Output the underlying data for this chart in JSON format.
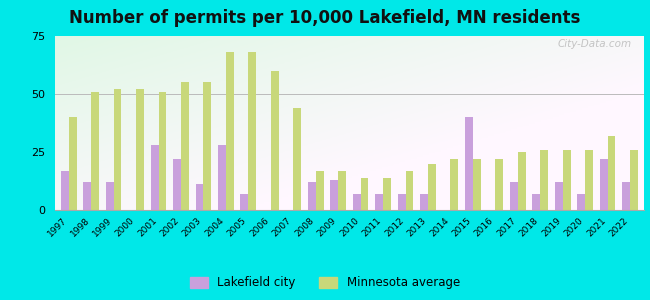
{
  "title": "Number of permits per 10,000 Lakefield, MN residents",
  "years": [
    1997,
    1998,
    1999,
    2000,
    2001,
    2002,
    2003,
    2004,
    2005,
    2006,
    2007,
    2008,
    2009,
    2010,
    2011,
    2012,
    2013,
    2014,
    2015,
    2016,
    2017,
    2018,
    2019,
    2020,
    2021,
    2022
  ],
  "lakefield": [
    17,
    12,
    12,
    0,
    28,
    22,
    11,
    28,
    7,
    0,
    0,
    12,
    13,
    7,
    7,
    7,
    7,
    0,
    40,
    0,
    12,
    7,
    12,
    7,
    22,
    12
  ],
  "mn_avg": [
    40,
    51,
    52,
    52,
    51,
    55,
    55,
    68,
    68,
    60,
    44,
    17,
    17,
    14,
    14,
    17,
    20,
    22,
    22,
    22,
    25,
    26,
    26,
    26,
    32,
    26
  ],
  "lakefield_color": "#c9a0dc",
  "mn_avg_color": "#c8d87a",
  "outer_background": "#00e8e8",
  "ylim": [
    0,
    75
  ],
  "yticks": [
    0,
    25,
    50,
    75
  ],
  "title_fontsize": 12,
  "watermark": "City-Data.com"
}
